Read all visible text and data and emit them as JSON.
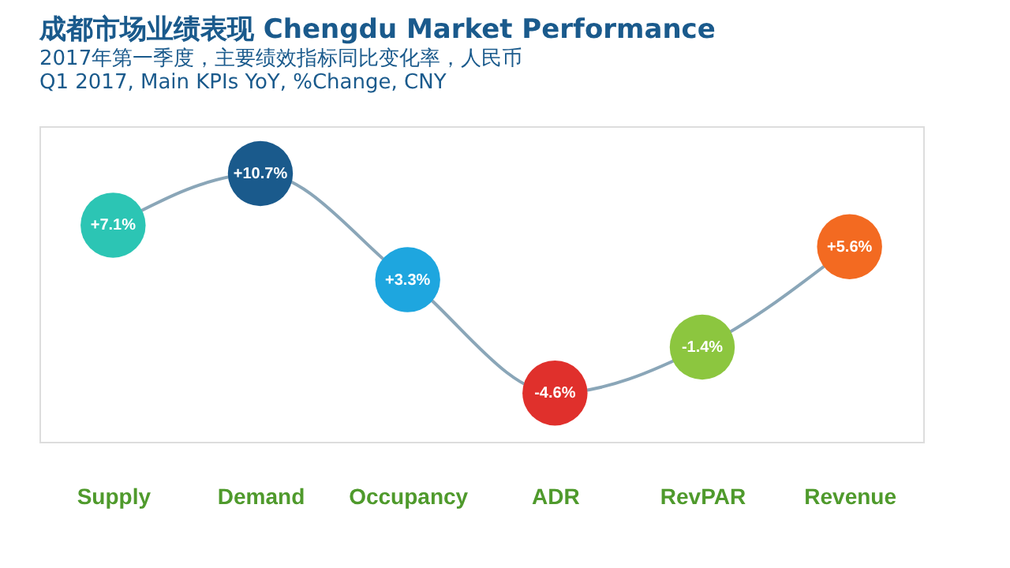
{
  "chart_data": {
    "type": "line",
    "title": "成都市场业绩表现 Chengdu Market Performance",
    "subtitle": "2017年第一季度，主要绩效指标同比变化率，人民币\nQ1 2017, Main KPIs YoY, %Change, CNY",
    "categories": [
      "Supply",
      "Demand",
      "Occupancy",
      "ADR",
      "RevPAR",
      "Revenue"
    ],
    "series": [
      {
        "color": "#8aa6b8",
        "colors": [
          "#2cc5b4",
          "#1a5a8c",
          "#1ea6df",
          "#e0302c",
          "#8cc63f",
          "#f36a21"
        ],
        "values": [
          7.1,
          10.7,
          3.3,
          -4.6,
          -1.4,
          5.6
        ],
        "value_labels": [
          "+7.1%",
          "+10.7%",
          "+3.3%",
          "-4.6%",
          "-1.4%",
          "+5.6%"
        ]
      }
    ],
    "marker": "circle",
    "grid": false,
    "tick_labels": "x"
  }
}
